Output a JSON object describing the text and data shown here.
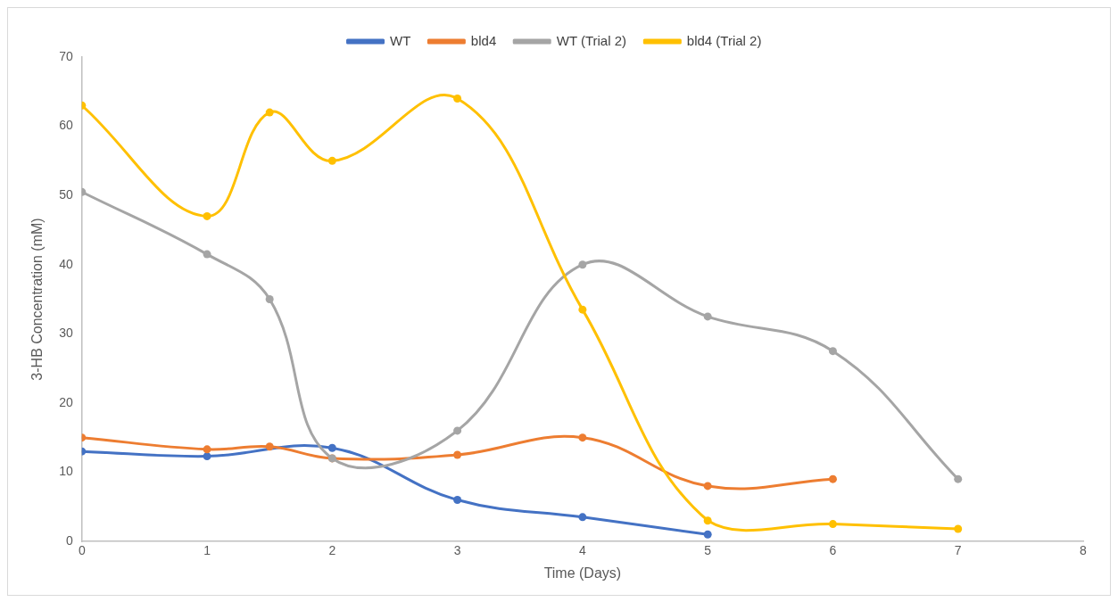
{
  "chart_data": {
    "type": "line",
    "xlabel": "Time (Days)",
    "ylabel": "3-HB Concentration (mM)",
    "xlim": [
      0,
      8
    ],
    "xticks": [
      0,
      1,
      2,
      3,
      4,
      5,
      6,
      7,
      8
    ],
    "ylim": [
      0,
      70
    ],
    "yticks": [
      0,
      10,
      20,
      30,
      40,
      50,
      60,
      70
    ],
    "grid": false,
    "legend": "top",
    "marker": "circle",
    "line_style": "solid",
    "series": [
      {
        "name": "WT",
        "color": "#4472c4",
        "x": [
          0,
          1,
          2,
          3,
          4,
          5
        ],
        "values": [
          13,
          12.3,
          13.5,
          6,
          3.5,
          1
        ]
      },
      {
        "name": "bld4",
        "color": "#ed7d31",
        "x": [
          0,
          1,
          1.5,
          2,
          3,
          4,
          5,
          6
        ],
        "values": [
          15,
          13.3,
          13.7,
          12,
          12.5,
          15,
          8,
          9
        ]
      },
      {
        "name": "WT (Trial 2)",
        "color": "#a5a5a5",
        "x": [
          0,
          1,
          1.5,
          2,
          3,
          4,
          5,
          6,
          7
        ],
        "values": [
          50.5,
          41.5,
          35,
          12,
          16,
          40,
          32.5,
          27.5,
          9
        ]
      },
      {
        "name": "bld4 (Trial 2)",
        "color": "#ffc000",
        "x": [
          0,
          1,
          1.5,
          2,
          3,
          4,
          5,
          6,
          7
        ],
        "values": [
          63,
          47,
          62,
          55,
          64,
          33.5,
          3,
          2.5,
          1.8
        ]
      }
    ]
  }
}
